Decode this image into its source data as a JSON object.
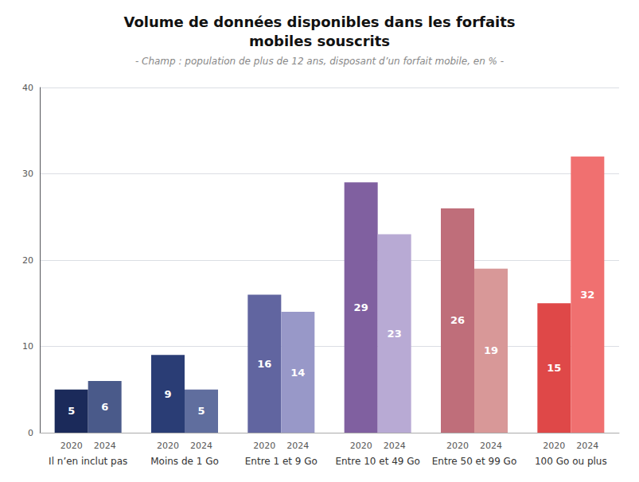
{
  "chart_data": {
    "type": "bar",
    "title": "Volume de données disponibles dans les forfaits\nmobiles souscrits",
    "subtitle": "- Champ : population de plus de 12 ans, disposant d’un forfait mobile, en % -",
    "categories": [
      "Il n’en inclut pas",
      "Moins de 1 Go",
      "Entre 1 et 9 Go",
      "Entre 10 et 49 Go",
      "Entre 50 et 99 Go",
      "100 Go ou plus"
    ],
    "series": [
      {
        "name": "2020",
        "values": [
          5,
          9,
          16,
          29,
          26,
          15
        ],
        "colors": [
          "#1b2a5a",
          "#2a3d75",
          "#6165a0",
          "#8060a0",
          "#bf6e7a",
          "#df4848"
        ]
      },
      {
        "name": "2024",
        "values": [
          6,
          5,
          14,
          23,
          19,
          32
        ],
        "colors": [
          "#4a5a8a",
          "#606e9e",
          "#9898c8",
          "#b8aad4",
          "#d89898",
          "#f07070"
        ]
      }
    ],
    "ylim": [
      0,
      40
    ],
    "yticks": [
      0,
      10,
      20,
      30,
      40
    ],
    "grid": true,
    "data_labels": true
  }
}
